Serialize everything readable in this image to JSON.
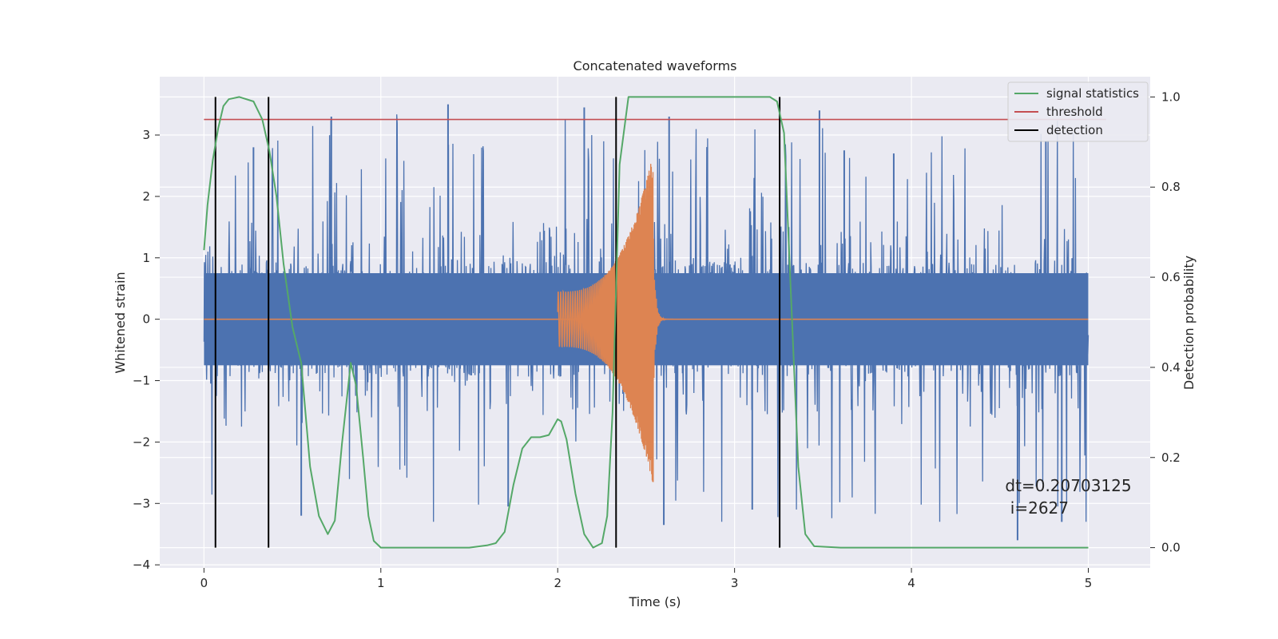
{
  "chart_data": {
    "type": "line",
    "title": "Concatenated waveforms",
    "xlabel": "Time (s)",
    "ylabel_left": "Whitened strain",
    "ylabel_right": "Detection probability",
    "xlim": [
      -0.25,
      5.35
    ],
    "ylim_left": [
      -4.05,
      3.95
    ],
    "ylim_right": [
      -0.045,
      1.045
    ],
    "x_ticks": [
      0,
      1,
      2,
      3,
      4,
      5
    ],
    "x_tick_labels": [
      "0",
      "1",
      "2",
      "3",
      "4",
      "5"
    ],
    "y_left_ticks": [
      3,
      2,
      1,
      0,
      -1,
      -2,
      -3,
      -4
    ],
    "y_left_tick_labels": [
      "3",
      "2",
      "1",
      "0",
      "−1",
      "−2",
      "−3",
      "−4"
    ],
    "y_right_ticks": [
      1.0,
      0.8,
      0.6,
      0.4,
      0.2,
      0.0
    ],
    "y_right_tick_labels": [
      "1.0",
      "0.8",
      "0.6",
      "0.4",
      "0.2",
      "0.0"
    ],
    "grid": true,
    "legend_position": "top-right",
    "legend": [
      "signal statistics",
      "threshold",
      "detection"
    ],
    "series": [
      {
        "name": "whitened strain",
        "axis": "left",
        "color": "#4c72b0",
        "x_range": [
          0,
          5
        ],
        "envelope": {
          "core_amplitude": 0.75,
          "peak_min": -3.3,
          "peak_max": 3.55
        }
      },
      {
        "name": "waveform",
        "axis": "left",
        "color": "#dd8452",
        "x_start": 2.0,
        "x_end": 2.54,
        "amplitude_start": 0.45,
        "amplitude_end": 2.7
      },
      {
        "name": "signal statistics",
        "axis": "right",
        "color": "#55a868",
        "x": [
          0,
          0.02,
          0.05,
          0.08,
          0.11,
          0.14,
          0.2,
          0.28,
          0.33,
          0.37,
          0.41,
          0.45,
          0.5,
          0.55,
          0.6,
          0.65,
          0.7,
          0.74,
          0.78,
          0.83,
          0.86,
          0.9,
          0.93,
          0.96,
          1.0,
          1.2,
          1.5,
          1.6,
          1.65,
          1.7,
          1.75,
          1.8,
          1.85,
          1.9,
          1.95,
          2.0,
          2.02,
          2.05,
          2.1,
          2.15,
          2.2,
          2.25,
          2.28,
          2.31,
          2.35,
          2.4,
          2.6,
          3.0,
          3.2,
          3.24,
          3.28,
          3.32,
          3.36,
          3.4,
          3.45,
          3.6,
          5.0
        ],
        "y": [
          0.66,
          0.76,
          0.86,
          0.93,
          0.98,
          0.995,
          1.0,
          0.99,
          0.95,
          0.88,
          0.78,
          0.63,
          0.49,
          0.41,
          0.18,
          0.07,
          0.03,
          0.06,
          0.23,
          0.41,
          0.36,
          0.2,
          0.07,
          0.015,
          0.0,
          0.0,
          0.0,
          0.005,
          0.01,
          0.035,
          0.14,
          0.22,
          0.245,
          0.245,
          0.25,
          0.285,
          0.28,
          0.24,
          0.12,
          0.03,
          0.0,
          0.01,
          0.07,
          0.3,
          0.85,
          1.0,
          1.0,
          1.0,
          1.0,
          0.99,
          0.92,
          0.55,
          0.18,
          0.03,
          0.003,
          0.0,
          0.0
        ]
      },
      {
        "name": "threshold",
        "axis": "right",
        "color": "#c44e52",
        "x": [
          0,
          5.1
        ],
        "y": [
          0.95,
          0.95
        ]
      },
      {
        "name": "detection",
        "axis": "right",
        "color": "#000000",
        "type": "vlines",
        "x": [
          0.065,
          0.365,
          2.33,
          3.255
        ],
        "y_range": [
          0.0,
          1.0
        ]
      }
    ],
    "annotation": {
      "line1": "dt=0.20703125",
      "line2": " i=2627",
      "x": 4.53,
      "y": 0.1
    }
  }
}
